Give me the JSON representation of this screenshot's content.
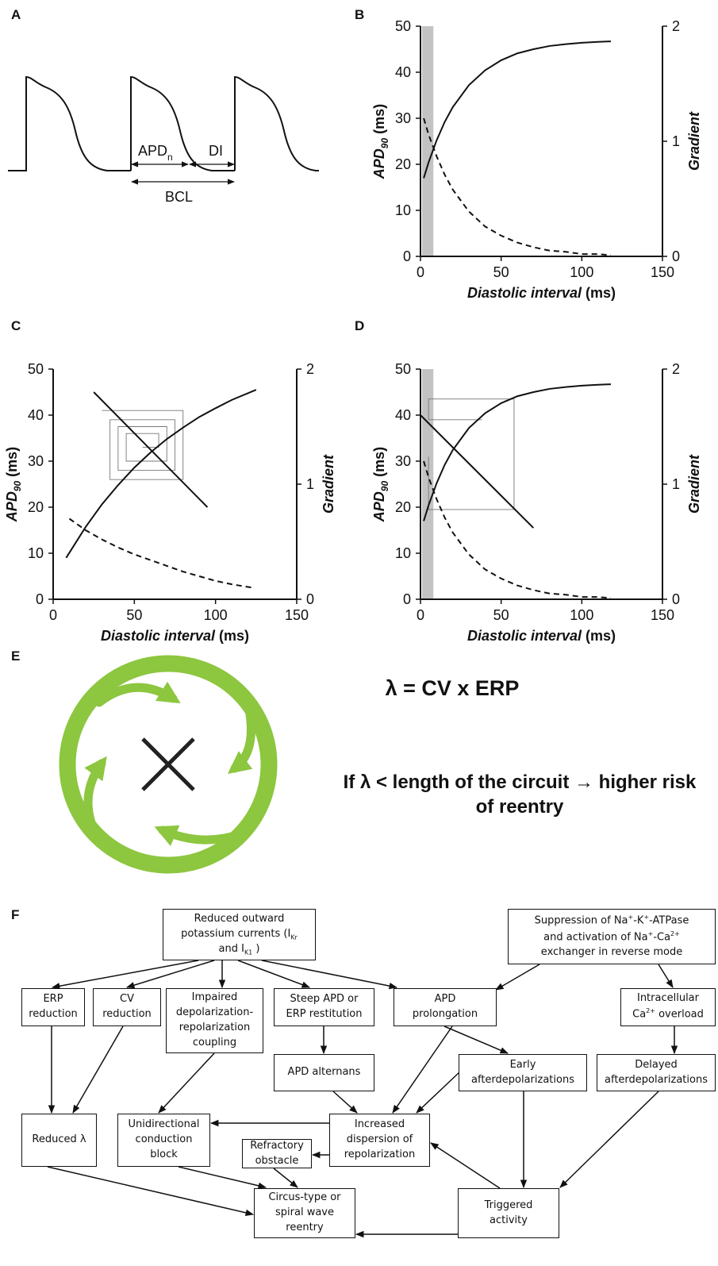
{
  "panel_labels": [
    "A",
    "B",
    "C",
    "D",
    "E",
    "F"
  ],
  "panel_a": {
    "apd": "APD",
    "apd_sub": "n",
    "di": "DI",
    "bcl": "BCL"
  },
  "chart_data": [
    {
      "type": "line",
      "x_label": [
        "Diastolic interval",
        " (ms)"
      ],
      "y_label": [
        "APD",
        "90",
        " (ms)"
      ],
      "y2_label": "Gradient",
      "xlim": [
        0,
        150
      ],
      "ylim": [
        0,
        50
      ],
      "y2lim": [
        0,
        2
      ],
      "xticks": [
        0,
        50,
        100,
        150
      ],
      "yticks": [
        0,
        10,
        20,
        30,
        40,
        50
      ],
      "y2ticks": [
        0,
        1,
        2
      ],
      "shaded_region": [
        1,
        8
      ],
      "series": [
        {
          "color": "#111111",
          "line_style": "solid",
          "x": [
            2,
            5,
            10,
            15,
            20,
            30,
            40,
            50,
            60,
            70,
            80,
            90,
            100,
            110,
            118
          ],
          "values": [
            17.0,
            20.4,
            25.2,
            29.2,
            32.4,
            37.2,
            40.4,
            42.6,
            44.1,
            45.0,
            45.7,
            46.1,
            46.4,
            46.6,
            46.7
          ]
        },
        {
          "color": "#111111",
          "line_style": "dashed",
          "axis": "y2",
          "x": [
            2,
            5,
            10,
            15,
            20,
            30,
            40,
            50,
            60,
            70,
            80,
            90,
            100,
            110,
            118
          ],
          "values": [
            1.2,
            1.06,
            0.87,
            0.71,
            0.58,
            0.39,
            0.26,
            0.18,
            0.12,
            0.08,
            0.05,
            0.04,
            0.02,
            0.02,
            0.01
          ]
        }
      ]
    },
    {
      "type": "line",
      "x_label": [
        "Diastolic interval",
        " (ms)"
      ],
      "y_label": [
        "APD",
        "90",
        " (ms)"
      ],
      "y2_label": "Gradient",
      "xlim": [
        0,
        150
      ],
      "ylim": [
        0,
        50
      ],
      "y2lim": [
        0,
        2
      ],
      "xticks": [
        0,
        50,
        100,
        150
      ],
      "yticks": [
        0,
        10,
        20,
        30,
        40,
        50
      ],
      "y2ticks": [
        0,
        1,
        2
      ],
      "series": [
        {
          "color": "#777777",
          "line_style": "thin",
          "x": [
            55,
            65,
            65,
            45,
            45,
            70,
            70,
            40,
            40,
            75,
            75,
            35,
            35,
            80,
            80,
            30
          ],
          "values": [
            33,
            33,
            36,
            36,
            30,
            30,
            37.5,
            37.5,
            28,
            28,
            39,
            39,
            26,
            26,
            41,
            41
          ]
        },
        {
          "color": "#111111",
          "line_style": "solid",
          "x": [
            8,
            20,
            30,
            40,
            50,
            60,
            70,
            80,
            90,
            100,
            110,
            125
          ],
          "values": [
            9.0,
            15.7,
            20.6,
            24.8,
            28.6,
            31.9,
            34.8,
            37.3,
            39.6,
            41.5,
            43.3,
            45.5
          ]
        },
        {
          "color": "#111111",
          "line_style": "solid",
          "x": [
            25,
            95
          ],
          "values": [
            45,
            20
          ]
        },
        {
          "color": "#111111",
          "line_style": "dashed",
          "axis": "y2",
          "x": [
            10,
            20,
            30,
            40,
            50,
            60,
            70,
            80,
            90,
            100,
            110,
            123
          ],
          "values": [
            0.7,
            0.6,
            0.52,
            0.45,
            0.39,
            0.34,
            0.29,
            0.24,
            0.2,
            0.16,
            0.13,
            0.1
          ]
        }
      ]
    },
    {
      "type": "line",
      "x_label": [
        "Diastolic interval",
        " (ms)"
      ],
      "y_label": [
        "APD",
        "90",
        " (ms)"
      ],
      "y2_label": "Gradient",
      "xlim": [
        0,
        150
      ],
      "ylim": [
        0,
        50
      ],
      "y2lim": [
        0,
        2
      ],
      "xticks": [
        0,
        50,
        100,
        150
      ],
      "yticks": [
        0,
        10,
        20,
        30,
        40,
        50
      ],
      "y2ticks": [
        0,
        1,
        2
      ],
      "shaded_region": [
        1,
        8
      ],
      "series": [
        {
          "color": "#777777",
          "line_style": "thin",
          "x": [
            5,
            5,
            58,
            58,
            5,
            5,
            38
          ],
          "values": [
            31,
            19.5,
            19.5,
            43.5,
            43.5,
            39,
            39
          ]
        },
        {
          "color": "#111111",
          "line_style": "solid",
          "x": [
            2,
            5,
            10,
            15,
            20,
            30,
            40,
            50,
            60,
            70,
            80,
            90,
            100,
            110,
            118
          ],
          "values": [
            17.0,
            20.4,
            25.2,
            29.2,
            32.4,
            37.2,
            40.4,
            42.6,
            44.1,
            45.0,
            45.7,
            46.1,
            46.4,
            46.6,
            46.7
          ]
        },
        {
          "color": "#111111",
          "line_style": "solid",
          "x": [
            0,
            70
          ],
          "values": [
            40,
            15.5
          ]
        },
        {
          "color": "#111111",
          "line_style": "dashed",
          "axis": "y2",
          "x": [
            2,
            5,
            10,
            15,
            20,
            30,
            40,
            50,
            60,
            70,
            80,
            90,
            100,
            110,
            118
          ],
          "values": [
            1.2,
            1.06,
            0.87,
            0.71,
            0.58,
            0.39,
            0.26,
            0.18,
            0.12,
            0.08,
            0.05,
            0.04,
            0.02,
            0.02,
            0.01
          ]
        }
      ]
    }
  ],
  "panel_e": {
    "formula": "λ = CV x ERP",
    "statement": "If λ < length of the circuit → higher risk of reentry"
  },
  "panel_f": {
    "nodes": [
      {
        "lines": [
          [
            "Reduced outward"
          ],
          [
            "potassium currents (I",
            {
              "sub": "Kr"
            }
          ],
          [
            "and I",
            {
              "sub": "K1"
            },
            " )"
          ]
        ]
      },
      {
        "lines": [
          [
            "Suppression of Na",
            {
              "sup": "+"
            },
            "-K",
            {
              "sup": "+"
            },
            "-ATPase"
          ],
          [
            "and activation of Na",
            {
              "sup": "+"
            },
            "-Ca",
            {
              "sup": "2+"
            }
          ],
          [
            "exchanger in reverse mode"
          ]
        ]
      },
      {
        "lines": [
          [
            "ERP"
          ],
          [
            "reduction"
          ]
        ]
      },
      {
        "lines": [
          [
            "CV"
          ],
          [
            "reduction"
          ]
        ]
      },
      {
        "lines": [
          [
            "Impaired"
          ],
          [
            "depolarization-"
          ],
          [
            "repolarization"
          ],
          [
            "coupling"
          ]
        ]
      },
      {
        "lines": [
          [
            "Steep APD or"
          ],
          [
            "ERP restitution"
          ]
        ]
      },
      {
        "lines": [
          [
            "APD"
          ],
          [
            "prolongation"
          ]
        ]
      },
      {
        "lines": [
          [
            "Intracellular"
          ],
          [
            "Ca",
            {
              "sup": "2+"
            },
            " overload"
          ]
        ]
      },
      {
        "lines": [
          [
            "APD alternans"
          ]
        ]
      },
      {
        "lines": [
          [
            "Early"
          ],
          [
            "afterdepolarizations"
          ]
        ]
      },
      {
        "lines": [
          [
            "Delayed"
          ],
          [
            "afterdepolarizations"
          ]
        ]
      },
      {
        "lines": [
          [
            "Reduced λ"
          ]
        ]
      },
      {
        "lines": [
          [
            "Unidirectional"
          ],
          [
            "conduction"
          ],
          [
            "block"
          ]
        ]
      },
      {
        "lines": [
          [
            "Increased"
          ],
          [
            "dispersion of"
          ],
          [
            "repolarization"
          ]
        ]
      },
      {
        "lines": [
          [
            "Refractory"
          ],
          [
            "obstacle"
          ]
        ]
      },
      {
        "lines": [
          [
            "Circus-type or"
          ],
          [
            "spiral wave"
          ],
          [
            "reentry"
          ]
        ]
      },
      {
        "lines": [
          [
            "Triggered"
          ],
          [
            "activity"
          ]
        ]
      }
    ]
  }
}
